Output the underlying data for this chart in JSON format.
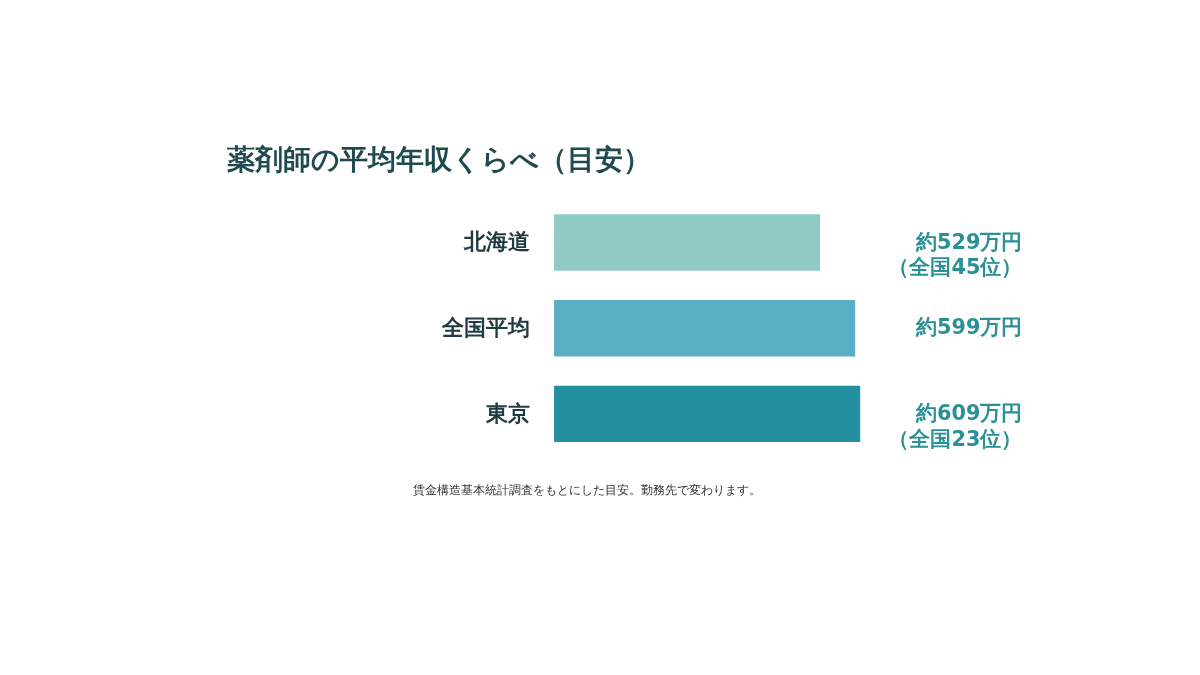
{
  "chart_data": {
    "type": "bar",
    "orientation": "horizontal",
    "title": "薬剤師の平均年収くらべ（目安）",
    "categories": [
      "北海道",
      "全国平均",
      "東京"
    ],
    "values": [
      529,
      599,
      609
    ],
    "colors": [
      "#8fcac6",
      "#5aafc4",
      "#248f9f"
    ],
    "value_labels": [
      "約529万円（全国45位）",
      "約599万円",
      "約609万円（全国23位）"
    ],
    "tick_labels": false,
    "annotations": [
      "賃金構造基本統計調査をもとにした目安。勤務先で変わります。"
    ]
  }
}
